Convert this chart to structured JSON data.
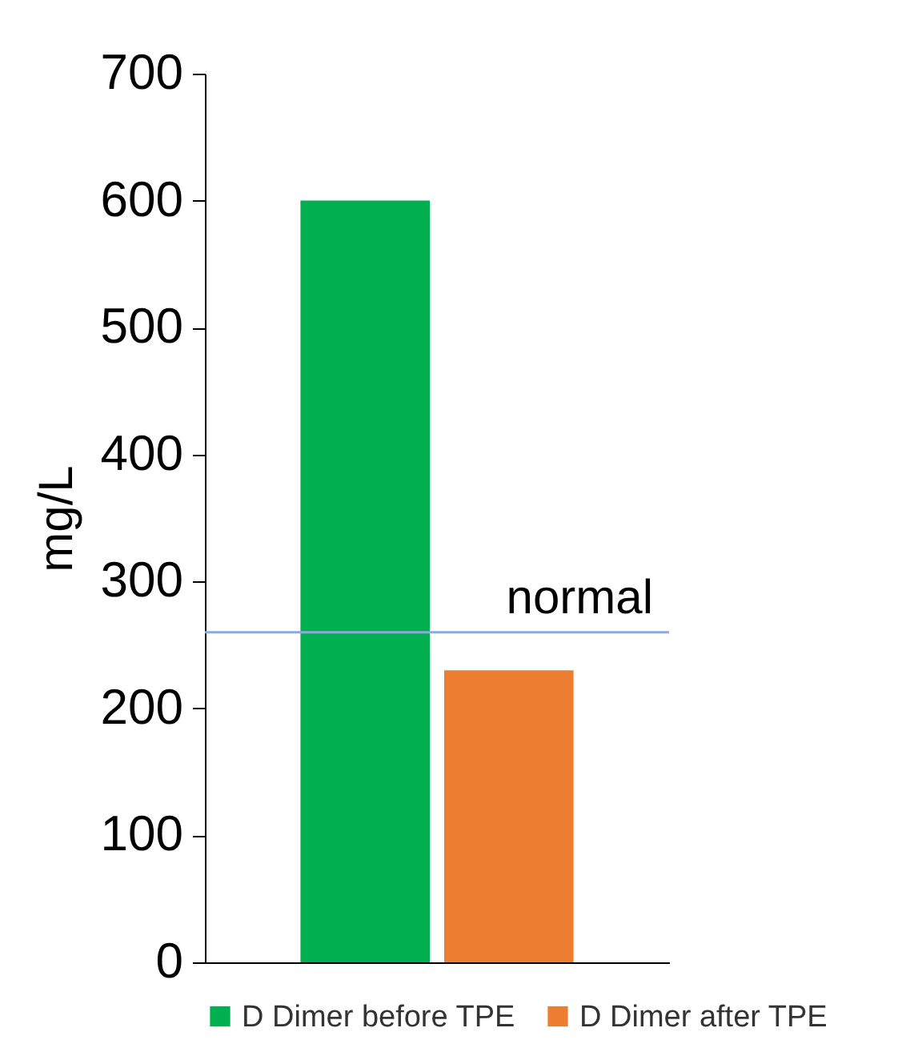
{
  "chart_data": {
    "type": "bar",
    "ylabel": "mg/L",
    "categories": [
      null
    ],
    "series": [
      {
        "name": "D Dimer before TPE",
        "color": "#00b050",
        "values": [
          600
        ]
      },
      {
        "name": "D Dimer after TPE",
        "color": "#ed7d31",
        "values": [
          230
        ]
      }
    ],
    "ylim": [
      0,
      700
    ],
    "yticks": [
      0,
      100,
      200,
      300,
      400,
      500,
      600,
      700
    ],
    "grid": false,
    "legend": "bottom",
    "ref_lines": [
      {
        "axis": "y",
        "value": 260,
        "label": "normal",
        "color": "#8eaadb"
      }
    ]
  }
}
